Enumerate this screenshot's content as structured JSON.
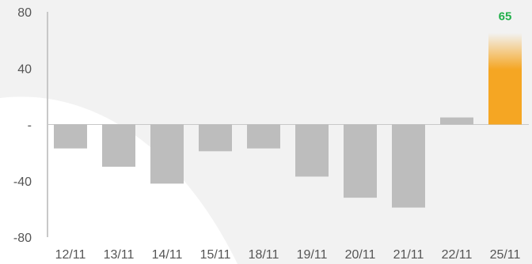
{
  "chart_data": {
    "type": "bar",
    "categories": [
      "12/11",
      "13/11",
      "14/11",
      "15/11",
      "18/11",
      "19/11",
      "20/11",
      "21/11",
      "22/11",
      "25/11"
    ],
    "values": [
      -17,
      -30,
      -42,
      -19,
      -17,
      -37,
      -52,
      -59,
      5,
      65
    ],
    "highlight_index": 9,
    "data_labels": [
      {
        "index": 9,
        "text": "65"
      }
    ],
    "ylim": [
      -80,
      80
    ],
    "y_ticks": [
      {
        "value": 80,
        "label": "80"
      },
      {
        "value": 40,
        "label": "40"
      },
      {
        "value": 0,
        "label": "-"
      },
      {
        "value": -40,
        "label": "-40"
      },
      {
        "value": -80,
        "label": "-80"
      }
    ],
    "title": "",
    "xlabel": "",
    "ylabel": "",
    "grid": false,
    "colors": {
      "bar": "#bdbdbd",
      "highlight": "#f5a623",
      "data_label": "#22b04b",
      "axis": "#c8c8c8",
      "background": "#f2f2f2"
    }
  }
}
